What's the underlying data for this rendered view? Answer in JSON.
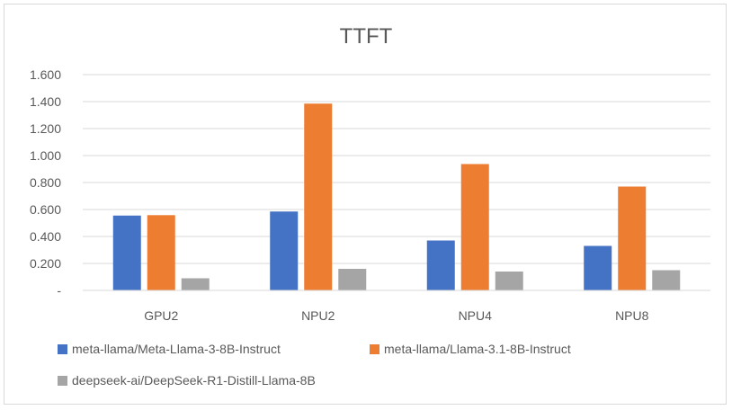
{
  "chart_data": {
    "type": "bar",
    "title": "TTFT",
    "xlabel": "",
    "ylabel": "",
    "categories": [
      "GPU2",
      "NPU2",
      "NPU4",
      "NPU8"
    ],
    "ylim": [
      0,
      1.6
    ],
    "yticks": [
      0,
      0.2,
      0.4,
      0.6,
      0.8,
      1.0,
      1.2,
      1.4,
      1.6
    ],
    "ytick_labels": [
      "-",
      "0.200",
      "0.400",
      "0.600",
      "0.800",
      "1.000",
      "1.200",
      "1.400",
      "1.600"
    ],
    "grid": true,
    "legend_position": "bottom",
    "series": [
      {
        "name": "meta-llama/Meta-Llama-3-8B-Instruct",
        "color": "#4472c4",
        "values": [
          0.555,
          0.585,
          0.37,
          0.33
        ]
      },
      {
        "name": "meta-llama/Llama-3.1-8B-Instruct",
        "color": "#ed7d31",
        "values": [
          0.558,
          1.385,
          0.937,
          0.77
        ]
      },
      {
        "name": "deepseek-ai/DeepSeek-R1-Distill-Llama-8B",
        "color": "#a5a5a5",
        "values": [
          0.09,
          0.16,
          0.14,
          0.15
        ]
      }
    ]
  }
}
